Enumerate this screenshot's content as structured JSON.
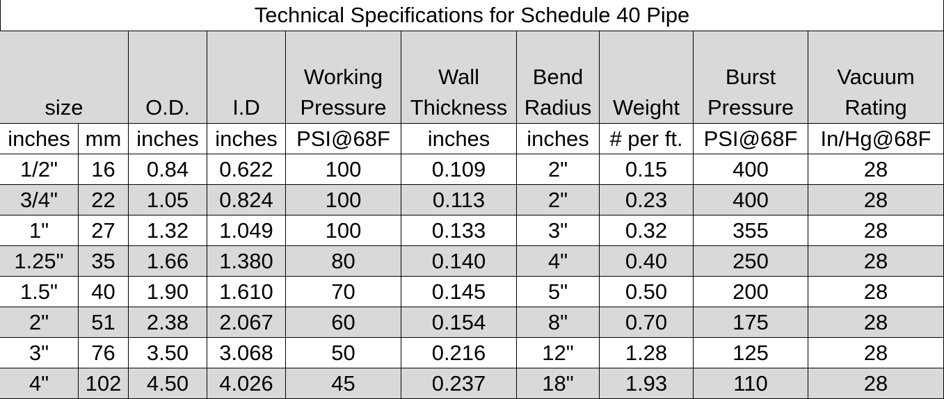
{
  "title": "Technical Specifications for Schedule 40 Pipe",
  "headers": [
    [
      "size"
    ],
    [
      "O.D."
    ],
    [
      "I.D"
    ],
    [
      "Working",
      "Pressure"
    ],
    [
      "Wall",
      "Thickness"
    ],
    [
      "Bend",
      "Radius"
    ],
    [
      "Weight"
    ],
    [
      "Burst",
      "Pressure"
    ],
    [
      "Vacuum",
      "Rating"
    ]
  ],
  "units": [
    "inches",
    "mm",
    "inches",
    "inches",
    "PSI@68F",
    "inches",
    "inches",
    "# per ft.",
    "PSI@68F",
    "In/Hg@68F"
  ],
  "rows": [
    [
      "1/2\"",
      "16",
      "0.84",
      "0.622",
      "100",
      "0.109",
      "2\"",
      "0.15",
      "400",
      "28"
    ],
    [
      "3/4\"",
      "22",
      "1.05",
      "0.824",
      "100",
      "0.113",
      "2\"",
      "0.23",
      "400",
      "28"
    ],
    [
      "1\"",
      "27",
      "1.32",
      "1.049",
      "100",
      "0.133",
      "3\"",
      "0.32",
      "355",
      "28"
    ],
    [
      "1.25\"",
      "35",
      "1.66",
      "1.380",
      "80",
      "0.140",
      "4\"",
      "0.40",
      "250",
      "28"
    ],
    [
      "1.5\"",
      "40",
      "1.90",
      "1.610",
      "70",
      "0.145",
      "5\"",
      "0.50",
      "200",
      "28"
    ],
    [
      "2\"",
      "51",
      "2.38",
      "2.067",
      "60",
      "0.154",
      "8\"",
      "0.70",
      "175",
      "28"
    ],
    [
      "3\"",
      "76",
      "3.50",
      "3.068",
      "50",
      "0.216",
      "12\"",
      "1.28",
      "125",
      "28"
    ],
    [
      "4\"",
      "102",
      "4.50",
      "4.026",
      "45",
      "0.237",
      "18\"",
      "1.93",
      "110",
      "28"
    ]
  ]
}
